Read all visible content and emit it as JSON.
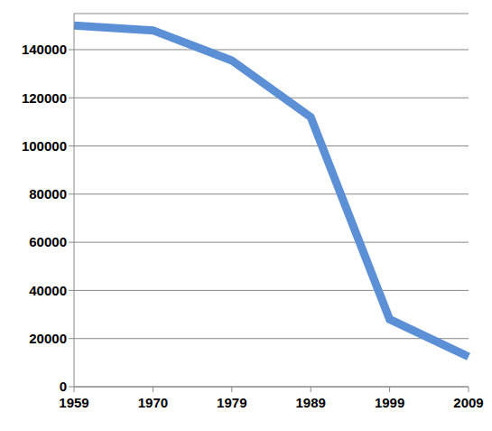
{
  "chart_data": {
    "type": "line",
    "categories": [
      "1959",
      "1970",
      "1979",
      "1989",
      "1999",
      "2009"
    ],
    "values": [
      150000,
      148000,
      135500,
      112000,
      28000,
      12500
    ],
    "color": "#5b8fd6",
    "ylim": [
      0,
      155000
    ],
    "yticks": [
      0,
      20000,
      40000,
      60000,
      80000,
      100000,
      120000,
      140000
    ],
    "grid": true
  }
}
